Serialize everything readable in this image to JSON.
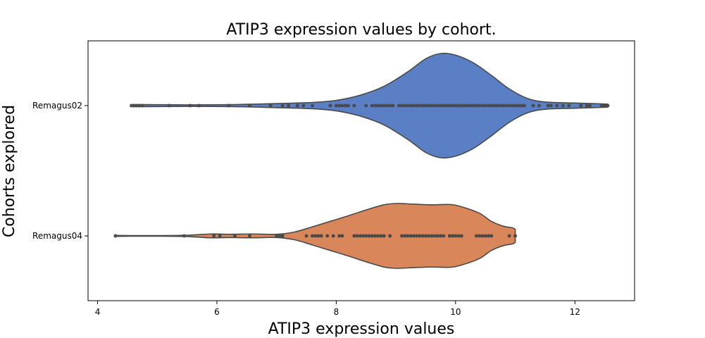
{
  "chart_data": {
    "type": "violin",
    "title": "ATIP3 expression values by cohort.",
    "xlabel": "ATIP3 expression values",
    "ylabel": "Cohorts explored",
    "xlim": [
      3.84,
      13.0
    ],
    "xticks": [
      4,
      6,
      8,
      10,
      12
    ],
    "xtick_labels": [
      "4",
      "6",
      "8",
      "10",
      "12"
    ],
    "orientation": "horizontal",
    "inner": "point",
    "grid": false,
    "categories": [
      "Remagus02",
      "Remagus04"
    ],
    "series": [
      {
        "name": "Remagus02",
        "color": "#5b7fc4",
        "min": 4.55,
        "max": 12.55,
        "density_profile": [
          [
            4.55,
            0.02
          ],
          [
            4.8,
            0.02
          ],
          [
            5.5,
            0.015
          ],
          [
            6.3,
            0.02
          ],
          [
            7.0,
            0.04
          ],
          [
            7.6,
            0.06
          ],
          [
            8.0,
            0.1
          ],
          [
            8.4,
            0.2
          ],
          [
            8.8,
            0.37
          ],
          [
            9.2,
            0.65
          ],
          [
            9.5,
            0.9
          ],
          [
            9.75,
            1.0
          ],
          [
            10.0,
            0.97
          ],
          [
            10.3,
            0.82
          ],
          [
            10.6,
            0.58
          ],
          [
            10.9,
            0.32
          ],
          [
            11.2,
            0.14
          ],
          [
            11.5,
            0.07
          ],
          [
            12.0,
            0.05
          ],
          [
            12.3,
            0.04
          ],
          [
            12.55,
            0.03
          ]
        ],
        "points": [
          4.6,
          4.65,
          4.7,
          4.75,
          5.2,
          5.55,
          5.7,
          6.2,
          6.55,
          6.9,
          7.1,
          7.2,
          7.35,
          7.45,
          7.6,
          7.9,
          8.0,
          8.05,
          8.1,
          8.15,
          8.2,
          8.3,
          8.5,
          8.6,
          8.65,
          8.7,
          8.75,
          8.8,
          8.85,
          8.9,
          8.95,
          9.05,
          9.1,
          9.15,
          9.2,
          9.25,
          9.3,
          9.35,
          9.4,
          9.45,
          9.5,
          9.55,
          9.6,
          9.65,
          9.7,
          9.75,
          9.8,
          9.85,
          9.9,
          9.95,
          10.0,
          10.05,
          10.1,
          10.15,
          10.2,
          10.25,
          10.3,
          10.35,
          10.4,
          10.45,
          10.5,
          10.55,
          10.6,
          10.65,
          10.7,
          10.75,
          10.8,
          10.85,
          10.9,
          10.95,
          11.0,
          11.05,
          11.1,
          11.15,
          11.3,
          11.4,
          11.55,
          11.6,
          11.7,
          11.8,
          11.9,
          12.1,
          12.2,
          12.25,
          12.45,
          12.5,
          12.55
        ]
      },
      {
        "name": "Remagus04",
        "color": "#d9875a",
        "min": 4.3,
        "max": 11.0,
        "density_profile": [
          [
            4.3,
            0.015
          ],
          [
            4.6,
            0.01
          ],
          [
            5.0,
            0.01
          ],
          [
            5.5,
            0.02
          ],
          [
            5.9,
            0.06
          ],
          [
            6.2,
            0.05
          ],
          [
            6.6,
            0.06
          ],
          [
            7.0,
            0.05
          ],
          [
            7.3,
            0.12
          ],
          [
            7.6,
            0.28
          ],
          [
            7.9,
            0.45
          ],
          [
            8.2,
            0.62
          ],
          [
            8.5,
            0.8
          ],
          [
            8.8,
            0.96
          ],
          [
            9.0,
            1.0
          ],
          [
            9.3,
            0.98
          ],
          [
            9.6,
            0.96
          ],
          [
            9.9,
            0.97
          ],
          [
            10.1,
            0.9
          ],
          [
            10.4,
            0.7
          ],
          [
            10.6,
            0.45
          ],
          [
            10.8,
            0.3
          ],
          [
            10.95,
            0.25
          ],
          [
            11.0,
            0.2
          ]
        ],
        "points": [
          4.3,
          5.45,
          5.95,
          6.05,
          6.3,
          6.55,
          7.0,
          7.05,
          7.1,
          7.5,
          7.6,
          7.65,
          7.7,
          7.75,
          7.85,
          7.95,
          8.05,
          8.1,
          8.3,
          8.35,
          8.4,
          8.45,
          8.5,
          8.55,
          8.6,
          8.65,
          8.7,
          8.75,
          8.8,
          8.9,
          9.1,
          9.15,
          9.2,
          9.25,
          9.3,
          9.35,
          9.4,
          9.45,
          9.5,
          9.55,
          9.6,
          9.65,
          9.7,
          9.75,
          9.8,
          9.9,
          9.95,
          10.0,
          10.05,
          10.1,
          10.35,
          10.4,
          10.45,
          10.5,
          10.55,
          10.6,
          10.9,
          11.0
        ]
      }
    ]
  }
}
